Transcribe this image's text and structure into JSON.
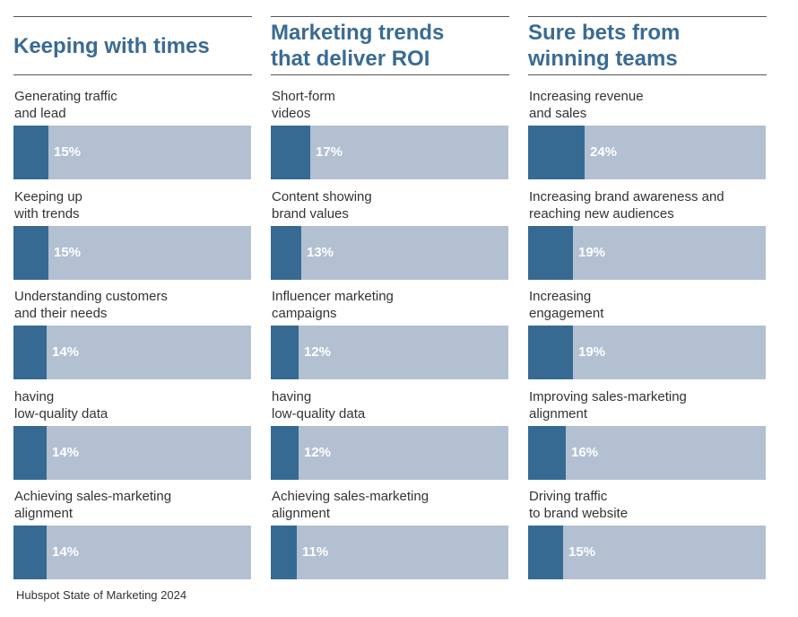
{
  "colors": {
    "title": "#3a6b93",
    "bar_fill": "#366a93",
    "bar_track": "#b2c0d2",
    "value_text": "#ffffff"
  },
  "source": "Hubspot State of Marketing 2024",
  "chart_data": [
    {
      "type": "bar",
      "orientation": "horizontal",
      "title": "Keeping with times",
      "categories": [
        "Generating traffic\nand lead",
        "Keeping up\nwith trends",
        "Understanding customers\nand their needs",
        "having\nlow-quality data",
        "Achieving sales-marketing\nalignment"
      ],
      "values": [
        15,
        15,
        14,
        14,
        14
      ],
      "value_labels": [
        "15%",
        "15%",
        "14%",
        "14%",
        "14%"
      ],
      "unit": "%",
      "xlim": [
        0,
        100
      ]
    },
    {
      "type": "bar",
      "orientation": "horizontal",
      "title": "Marketing trends\nthat deliver ROI",
      "categories": [
        "Short-form\nvideos",
        "Content showing\nbrand values",
        "Influencer marketing\ncampaigns",
        "having\nlow-quality data",
        "Achieving sales-marketing\nalignment"
      ],
      "values": [
        17,
        13,
        12,
        12,
        11
      ],
      "value_labels": [
        "17%",
        "13%",
        "12%",
        "12%",
        "11%"
      ],
      "unit": "%",
      "xlim": [
        0,
        100
      ]
    },
    {
      "type": "bar",
      "orientation": "horizontal",
      "title": "Sure bets from\nwinning teams",
      "categories": [
        "Increasing revenue\nand sales",
        "Increasing brand awareness and\nreaching new audiences",
        "Increasing\nengagement",
        "Improving sales-marketing\nalignment",
        "Driving traffic\nto brand website"
      ],
      "values": [
        24,
        19,
        19,
        16,
        15
      ],
      "value_labels": [
        "24%",
        "19%",
        "19%",
        "16%",
        "15%"
      ],
      "unit": "%",
      "xlim": [
        0,
        100
      ]
    }
  ]
}
